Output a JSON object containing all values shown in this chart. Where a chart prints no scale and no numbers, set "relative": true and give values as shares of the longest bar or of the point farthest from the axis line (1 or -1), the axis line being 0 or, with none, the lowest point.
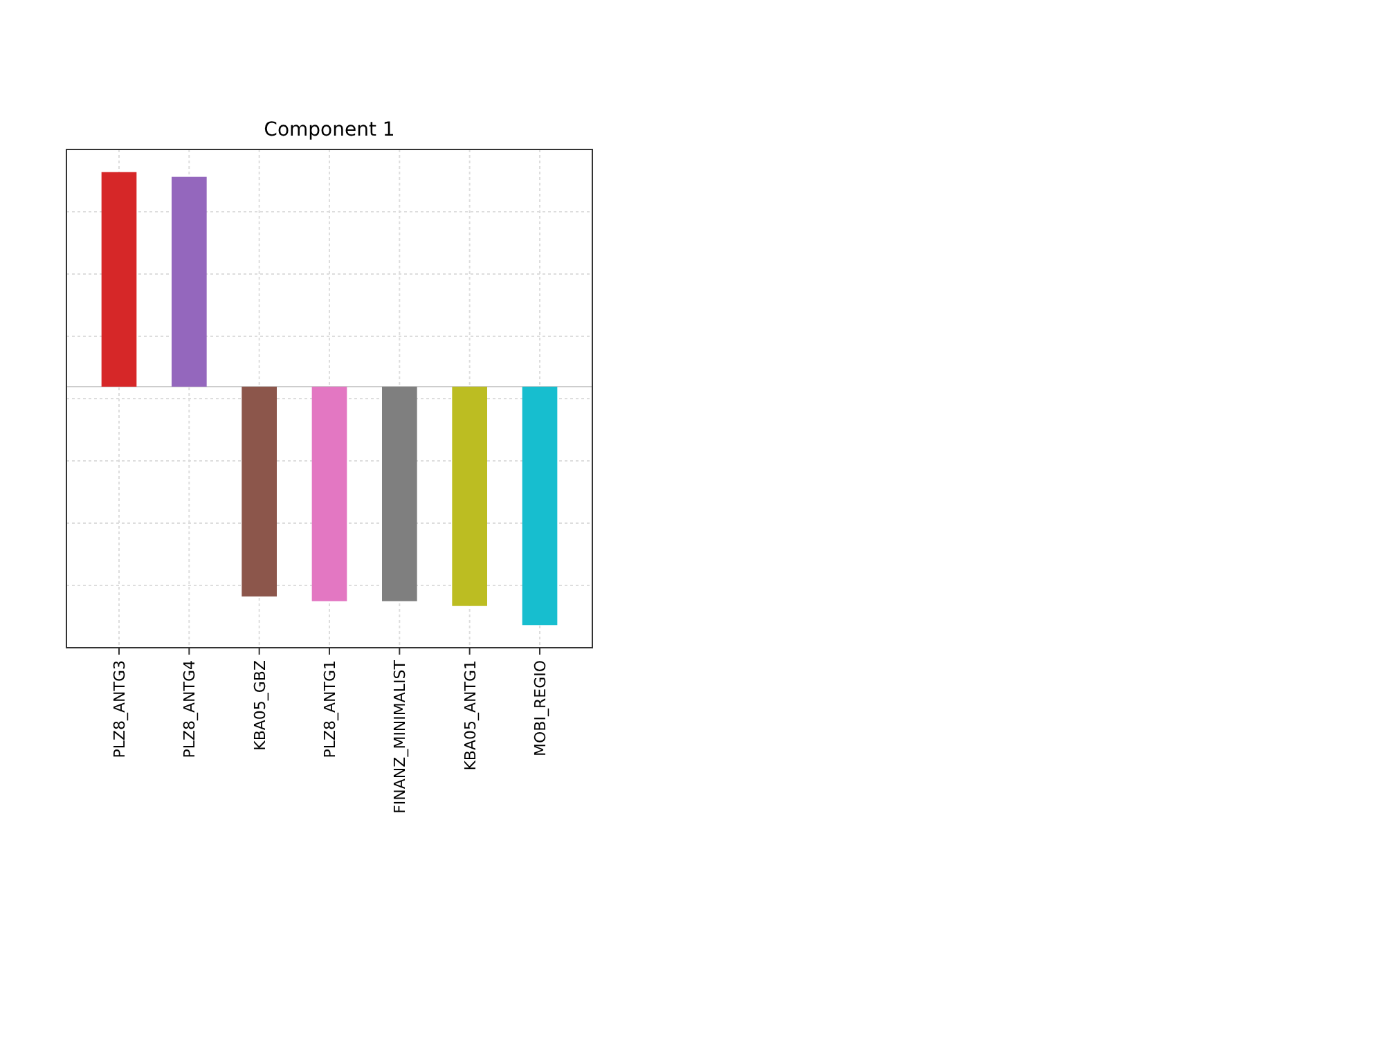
{
  "chart_data": {
    "type": "bar",
    "title": "Component 1",
    "relative": true,
    "grid": true,
    "categories": [
      "PLZ8_ANTG3",
      "PLZ8_ANTG4",
      "KBA05_GBZ",
      "PLZ8_ANTG1",
      "FINANZ_MINIMALIST",
      "KBA05_ANTG1",
      "MOBI_REGIO"
    ],
    "colors": [
      "#d62728",
      "#9467bd",
      "#8c564b",
      "#e377c2",
      "#7f7f7f",
      "#bcbd22",
      "#17becf"
    ],
    "values": [
      0.9,
      0.88,
      -0.88,
      -0.9,
      -0.9,
      -0.92,
      -1
    ]
  }
}
